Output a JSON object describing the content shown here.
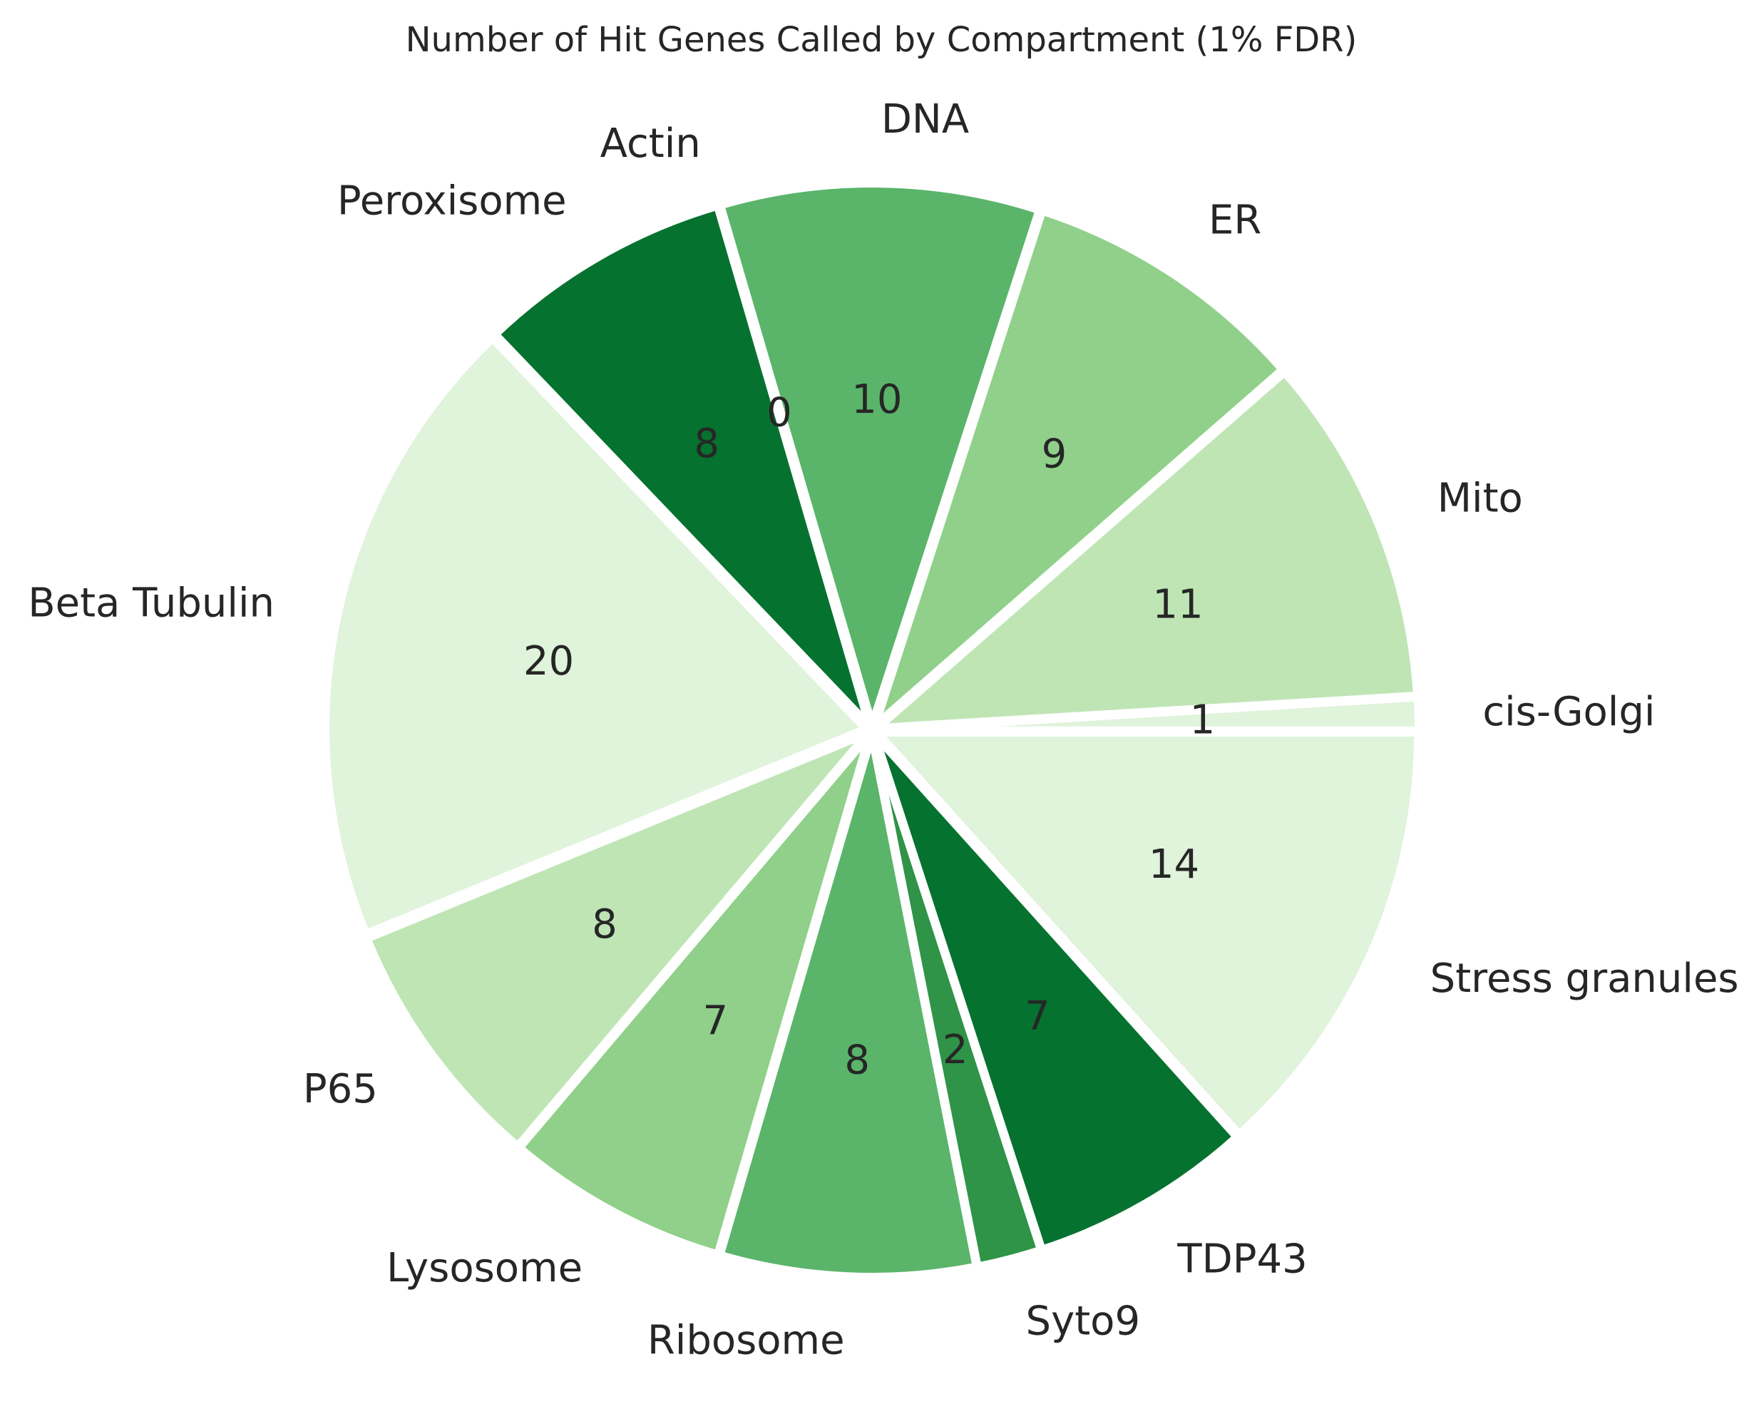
{
  "chart_data": {
    "type": "pie",
    "title": "Number of Hit Genes Called by Compartment (1% FDR)",
    "start_angle_deg": 0,
    "direction": "counterclockwise",
    "slices": [
      {
        "label": "cis-Golgi",
        "value": 1,
        "color": "#e0f3db"
      },
      {
        "label": "Mito",
        "value": 11,
        "color": "#bfe5b5"
      },
      {
        "label": "ER",
        "value": 9,
        "color": "#90d08a"
      },
      {
        "label": "DNA",
        "value": 10,
        "color": "#5ab46a"
      },
      {
        "label": "Actin",
        "value": 0,
        "color": "#2f9348"
      },
      {
        "label": "Peroxisome",
        "value": 8,
        "color": "#06722f"
      },
      {
        "label": "Beta Tubulin",
        "value": 20,
        "color": "#e0f3db"
      },
      {
        "label": "P65",
        "value": 8,
        "color": "#bfe5b5"
      },
      {
        "label": "Lysosome",
        "value": 7,
        "color": "#90d08a"
      },
      {
        "label": "Ribosome",
        "value": 8,
        "color": "#5ab46a"
      },
      {
        "label": "Syto9",
        "value": 2,
        "color": "#2f9348"
      },
      {
        "label": "TDP43",
        "value": 7,
        "color": "#06722f"
      },
      {
        "label": "Stress granules",
        "value": 14,
        "color": "#e0f3db"
      }
    ]
  }
}
